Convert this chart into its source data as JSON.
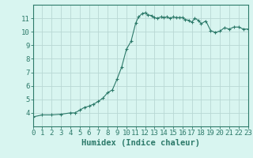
{
  "x_values": [
    0,
    1,
    2,
    3,
    4,
    4.5,
    5,
    5.5,
    6,
    6.5,
    7,
    7.5,
    8,
    8.5,
    9,
    9.5,
    10,
    10.5,
    11,
    11.3,
    11.7,
    12,
    12.3,
    12.7,
    13,
    13.3,
    13.7,
    14,
    14.3,
    14.7,
    15,
    15.3,
    15.7,
    16,
    16.3,
    16.7,
    17,
    17.3,
    17.7,
    18,
    18.5,
    19,
    19.5,
    20,
    20.5,
    21,
    21.5,
    22,
    22.5,
    23
  ],
  "y_values": [
    3.7,
    3.85,
    3.85,
    3.9,
    4.0,
    4.0,
    4.2,
    4.4,
    4.5,
    4.65,
    4.85,
    5.1,
    5.5,
    5.7,
    6.5,
    7.4,
    8.7,
    9.3,
    10.65,
    11.1,
    11.35,
    11.4,
    11.25,
    11.2,
    11.05,
    11.0,
    11.1,
    11.05,
    11.1,
    11.0,
    11.1,
    11.05,
    11.05,
    11.05,
    10.9,
    10.85,
    10.7,
    11.0,
    10.85,
    10.6,
    10.8,
    10.1,
    9.95,
    10.05,
    10.3,
    10.2,
    10.35,
    10.35,
    10.2,
    10.2
  ],
  "xlim": [
    0,
    23
  ],
  "ylim": [
    3,
    12
  ],
  "xticks": [
    0,
    1,
    2,
    3,
    4,
    5,
    6,
    7,
    8,
    9,
    10,
    11,
    12,
    13,
    14,
    15,
    16,
    17,
    18,
    19,
    20,
    21,
    22,
    23
  ],
  "yticks": [
    4,
    5,
    6,
    7,
    8,
    9,
    10,
    11
  ],
  "xlabel": "Humidex (Indice chaleur)",
  "line_color": "#2d7a6a",
  "marker": "+",
  "marker_size": 3,
  "bg_color": "#d8f5f0",
  "grid_color": "#b8d8d4",
  "axis_color": "#2d7a6a",
  "tick_label_fontsize": 6.5,
  "xlabel_fontsize": 7.5
}
